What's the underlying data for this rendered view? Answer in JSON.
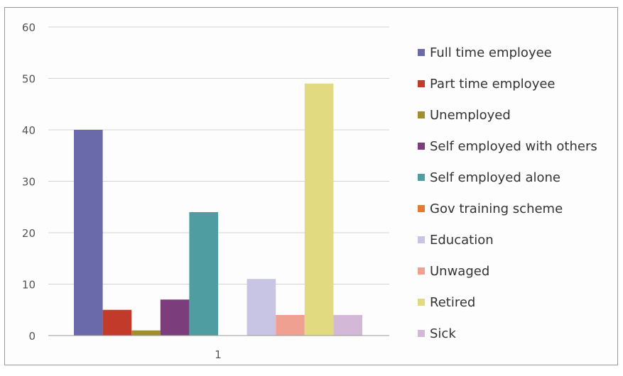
{
  "chart_data": {
    "type": "bar",
    "title": "",
    "xlabel": "",
    "ylabel": "",
    "categories": [
      "1"
    ],
    "ylim": [
      0,
      60
    ],
    "yticks": [
      0,
      10,
      20,
      30,
      40,
      50,
      60
    ],
    "grid": true,
    "legend_position": "right",
    "series": [
      {
        "name": "Full time employee",
        "values": [
          40
        ],
        "color": "#6a6aab"
      },
      {
        "name": "Part time employee",
        "values": [
          5
        ],
        "color": "#c23a2a"
      },
      {
        "name": "Unemployed",
        "values": [
          1
        ],
        "color": "#a0902c"
      },
      {
        "name": "Self employed with others",
        "values": [
          7
        ],
        "color": "#7c3d7c"
      },
      {
        "name": "Self employed alone",
        "values": [
          24
        ],
        "color": "#4f9da0"
      },
      {
        "name": "Gov training scheme",
        "values": [
          0
        ],
        "color": "#e57a33"
      },
      {
        "name": "Education",
        "values": [
          11
        ],
        "color": "#c7c4e4"
      },
      {
        "name": "Unwaged",
        "values": [
          4
        ],
        "color": "#f0a090"
      },
      {
        "name": "Retired",
        "values": [
          49
        ],
        "color": "#e2da80"
      },
      {
        "name": "Sick",
        "values": [
          4
        ],
        "color": "#d4b8d8"
      }
    ]
  }
}
